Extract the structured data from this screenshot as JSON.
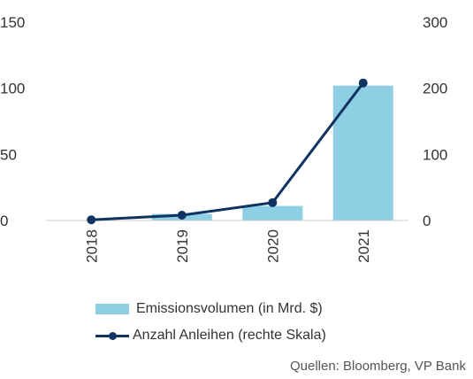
{
  "chart_data": {
    "type": "bar",
    "title": "",
    "categories": [
      "2018",
      "2019",
      "2020",
      "2021"
    ],
    "left_axis": {
      "ylim": [
        0,
        150
      ],
      "ticks": [
        0,
        50,
        100,
        150
      ]
    },
    "right_axis": {
      "ylim": [
        0,
        300
      ],
      "ticks": [
        0,
        100,
        200,
        300
      ]
    },
    "series": [
      {
        "name": "Emissionsvolumen (in Mrd. $)",
        "type": "bar",
        "axis": "left",
        "values": [
          0,
          5,
          11,
          102
        ]
      },
      {
        "name": "Anzahl Anleihen (rechte Skala)",
        "type": "line",
        "axis": "right",
        "values": [
          1,
          8,
          27,
          208
        ]
      }
    ],
    "legend_position": "bottom",
    "grid": false
  },
  "colors": {
    "bar": "#8ecfe3",
    "line": "#0f3461",
    "axis": "#cccccc",
    "text": "#333333"
  },
  "source": "Quellen: Bloomberg, VP Bank"
}
